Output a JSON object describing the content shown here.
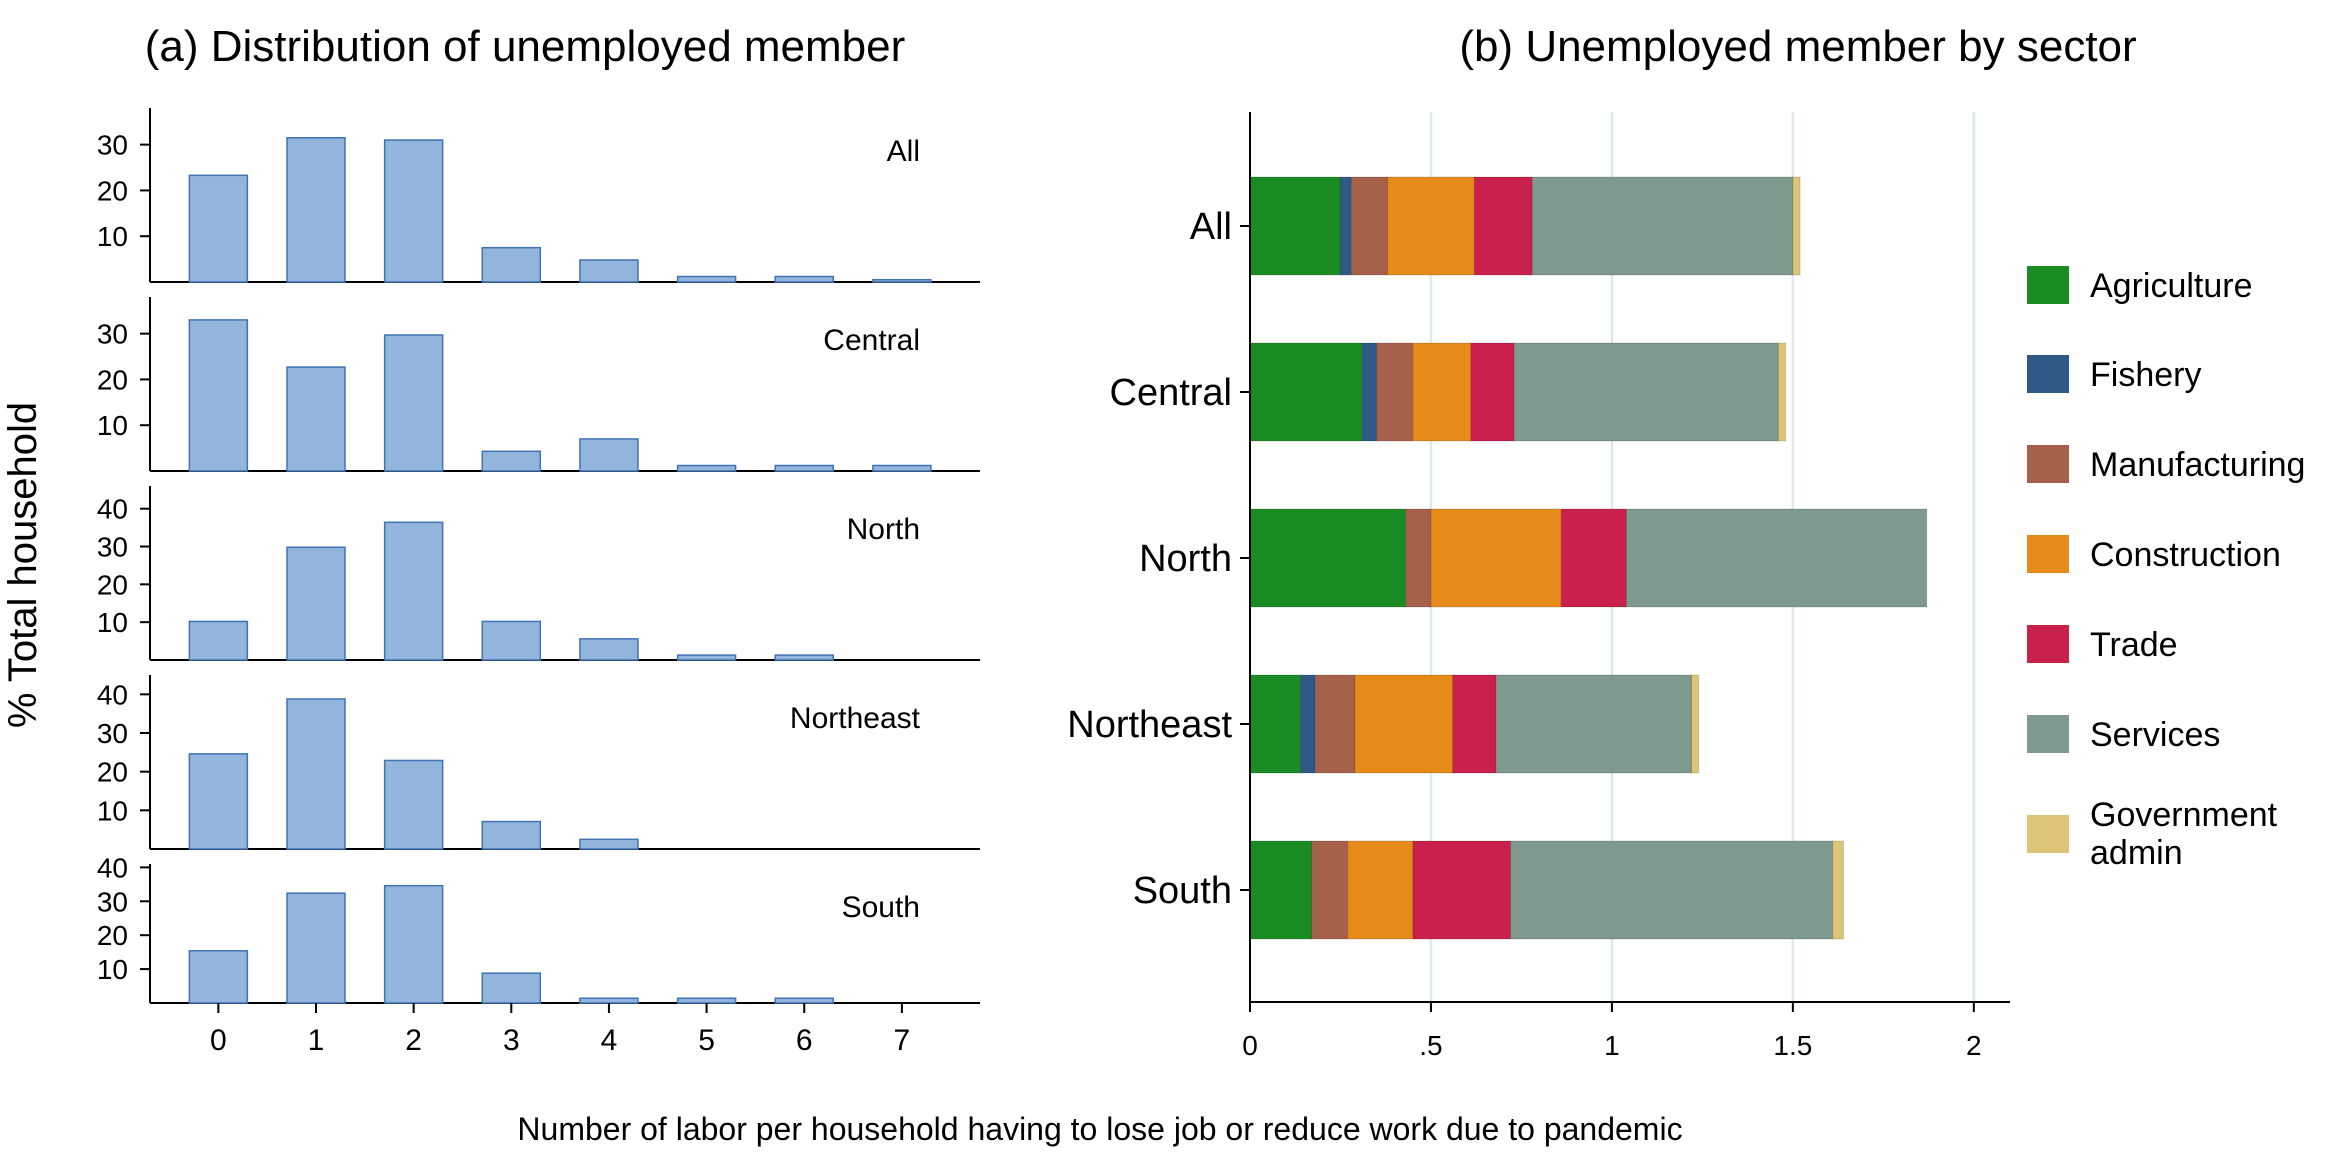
{
  "figure": {
    "y_axis_title": "% Total household",
    "x_axis_title": "Number of labor per household having to lose job or reduce work due to pandemic"
  },
  "colors": {
    "bar_fill": "#93b5db",
    "bar_stroke": "#3f73b4",
    "grid": "#dcebea",
    "axis": "#000000"
  },
  "chart_data": [
    {
      "id": "panel-a",
      "type": "bar",
      "title": "(a) Distribution of unemployed member",
      "xlabel": "Number of labor per household having to lose job or reduce work due to pandemic",
      "ylabel": "% Total household",
      "categories": [
        "0",
        "1",
        "2",
        "3",
        "4",
        "5",
        "6",
        "7"
      ],
      "xlim": [
        -0.7,
        7.8
      ],
      "subplots": [
        {
          "name": "All",
          "ylim": [
            0,
            38
          ],
          "yticks": [
            10,
            20,
            30
          ],
          "values": [
            23.3,
            31.5,
            31.0,
            7.5,
            4.8,
            1.2,
            1.2,
            0.5
          ]
        },
        {
          "name": "Central",
          "ylim": [
            0,
            38
          ],
          "yticks": [
            10,
            20,
            30
          ],
          "values": [
            33.0,
            22.7,
            29.7,
            4.3,
            7.0,
            1.2,
            1.2,
            1.2
          ]
        },
        {
          "name": "North",
          "ylim": [
            0,
            46
          ],
          "yticks": [
            10,
            20,
            30,
            40
          ],
          "values": [
            10.2,
            29.8,
            36.4,
            10.2,
            5.6,
            1.3,
            1.3,
            0
          ]
        },
        {
          "name": "Northeast",
          "ylim": [
            0,
            45
          ],
          "yticks": [
            10,
            20,
            30,
            40
          ],
          "values": [
            24.6,
            38.8,
            22.9,
            7.1,
            2.5,
            0,
            0,
            0
          ]
        },
        {
          "name": "South",
          "ylim": [
            0,
            41
          ],
          "yticks": [
            10,
            20,
            30,
            40
          ],
          "values": [
            15.4,
            32.4,
            34.6,
            8.8,
            1.4,
            1.4,
            1.4,
            0
          ]
        }
      ]
    },
    {
      "id": "panel-b",
      "type": "bar",
      "orientation": "horizontal",
      "stacked": true,
      "title": "(b) Unemployed member by sector",
      "categories": [
        "All",
        "Central",
        "North",
        "Northeast",
        "South"
      ],
      "xlim": [
        0,
        2.1
      ],
      "xticks": [
        0,
        0.5,
        1,
        1.5,
        2
      ],
      "xtick_labels": [
        "0",
        ".5",
        "1",
        "1.5",
        "2"
      ],
      "grid": true,
      "legend_position": "right",
      "series": [
        {
          "name": "Agriculture",
          "color": "#1a8c23",
          "values": [
            0.25,
            0.31,
            0.43,
            0.14,
            0.17
          ]
        },
        {
          "name": "Fishery",
          "color": "#2f5a87",
          "values": [
            0.03,
            0.04,
            0.0,
            0.04,
            0.0
          ]
        },
        {
          "name": "Manufacturing",
          "color": "#a6614a",
          "values": [
            0.1,
            0.1,
            0.07,
            0.11,
            0.1
          ]
        },
        {
          "name": "Construction",
          "color": "#e68a1a",
          "values": [
            0.24,
            0.16,
            0.36,
            0.27,
            0.18
          ]
        },
        {
          "name": "Trade",
          "color": "#c9214b",
          "values": [
            0.16,
            0.12,
            0.18,
            0.12,
            0.27
          ]
        },
        {
          "name": "Services",
          "color": "#7e9a8e",
          "values": [
            0.72,
            0.73,
            0.83,
            0.54,
            0.89
          ]
        },
        {
          "name": "Government admin",
          "color": "#dcc576",
          "values": [
            0.02,
            0.02,
            0.0,
            0.02,
            0.03
          ]
        }
      ]
    }
  ]
}
